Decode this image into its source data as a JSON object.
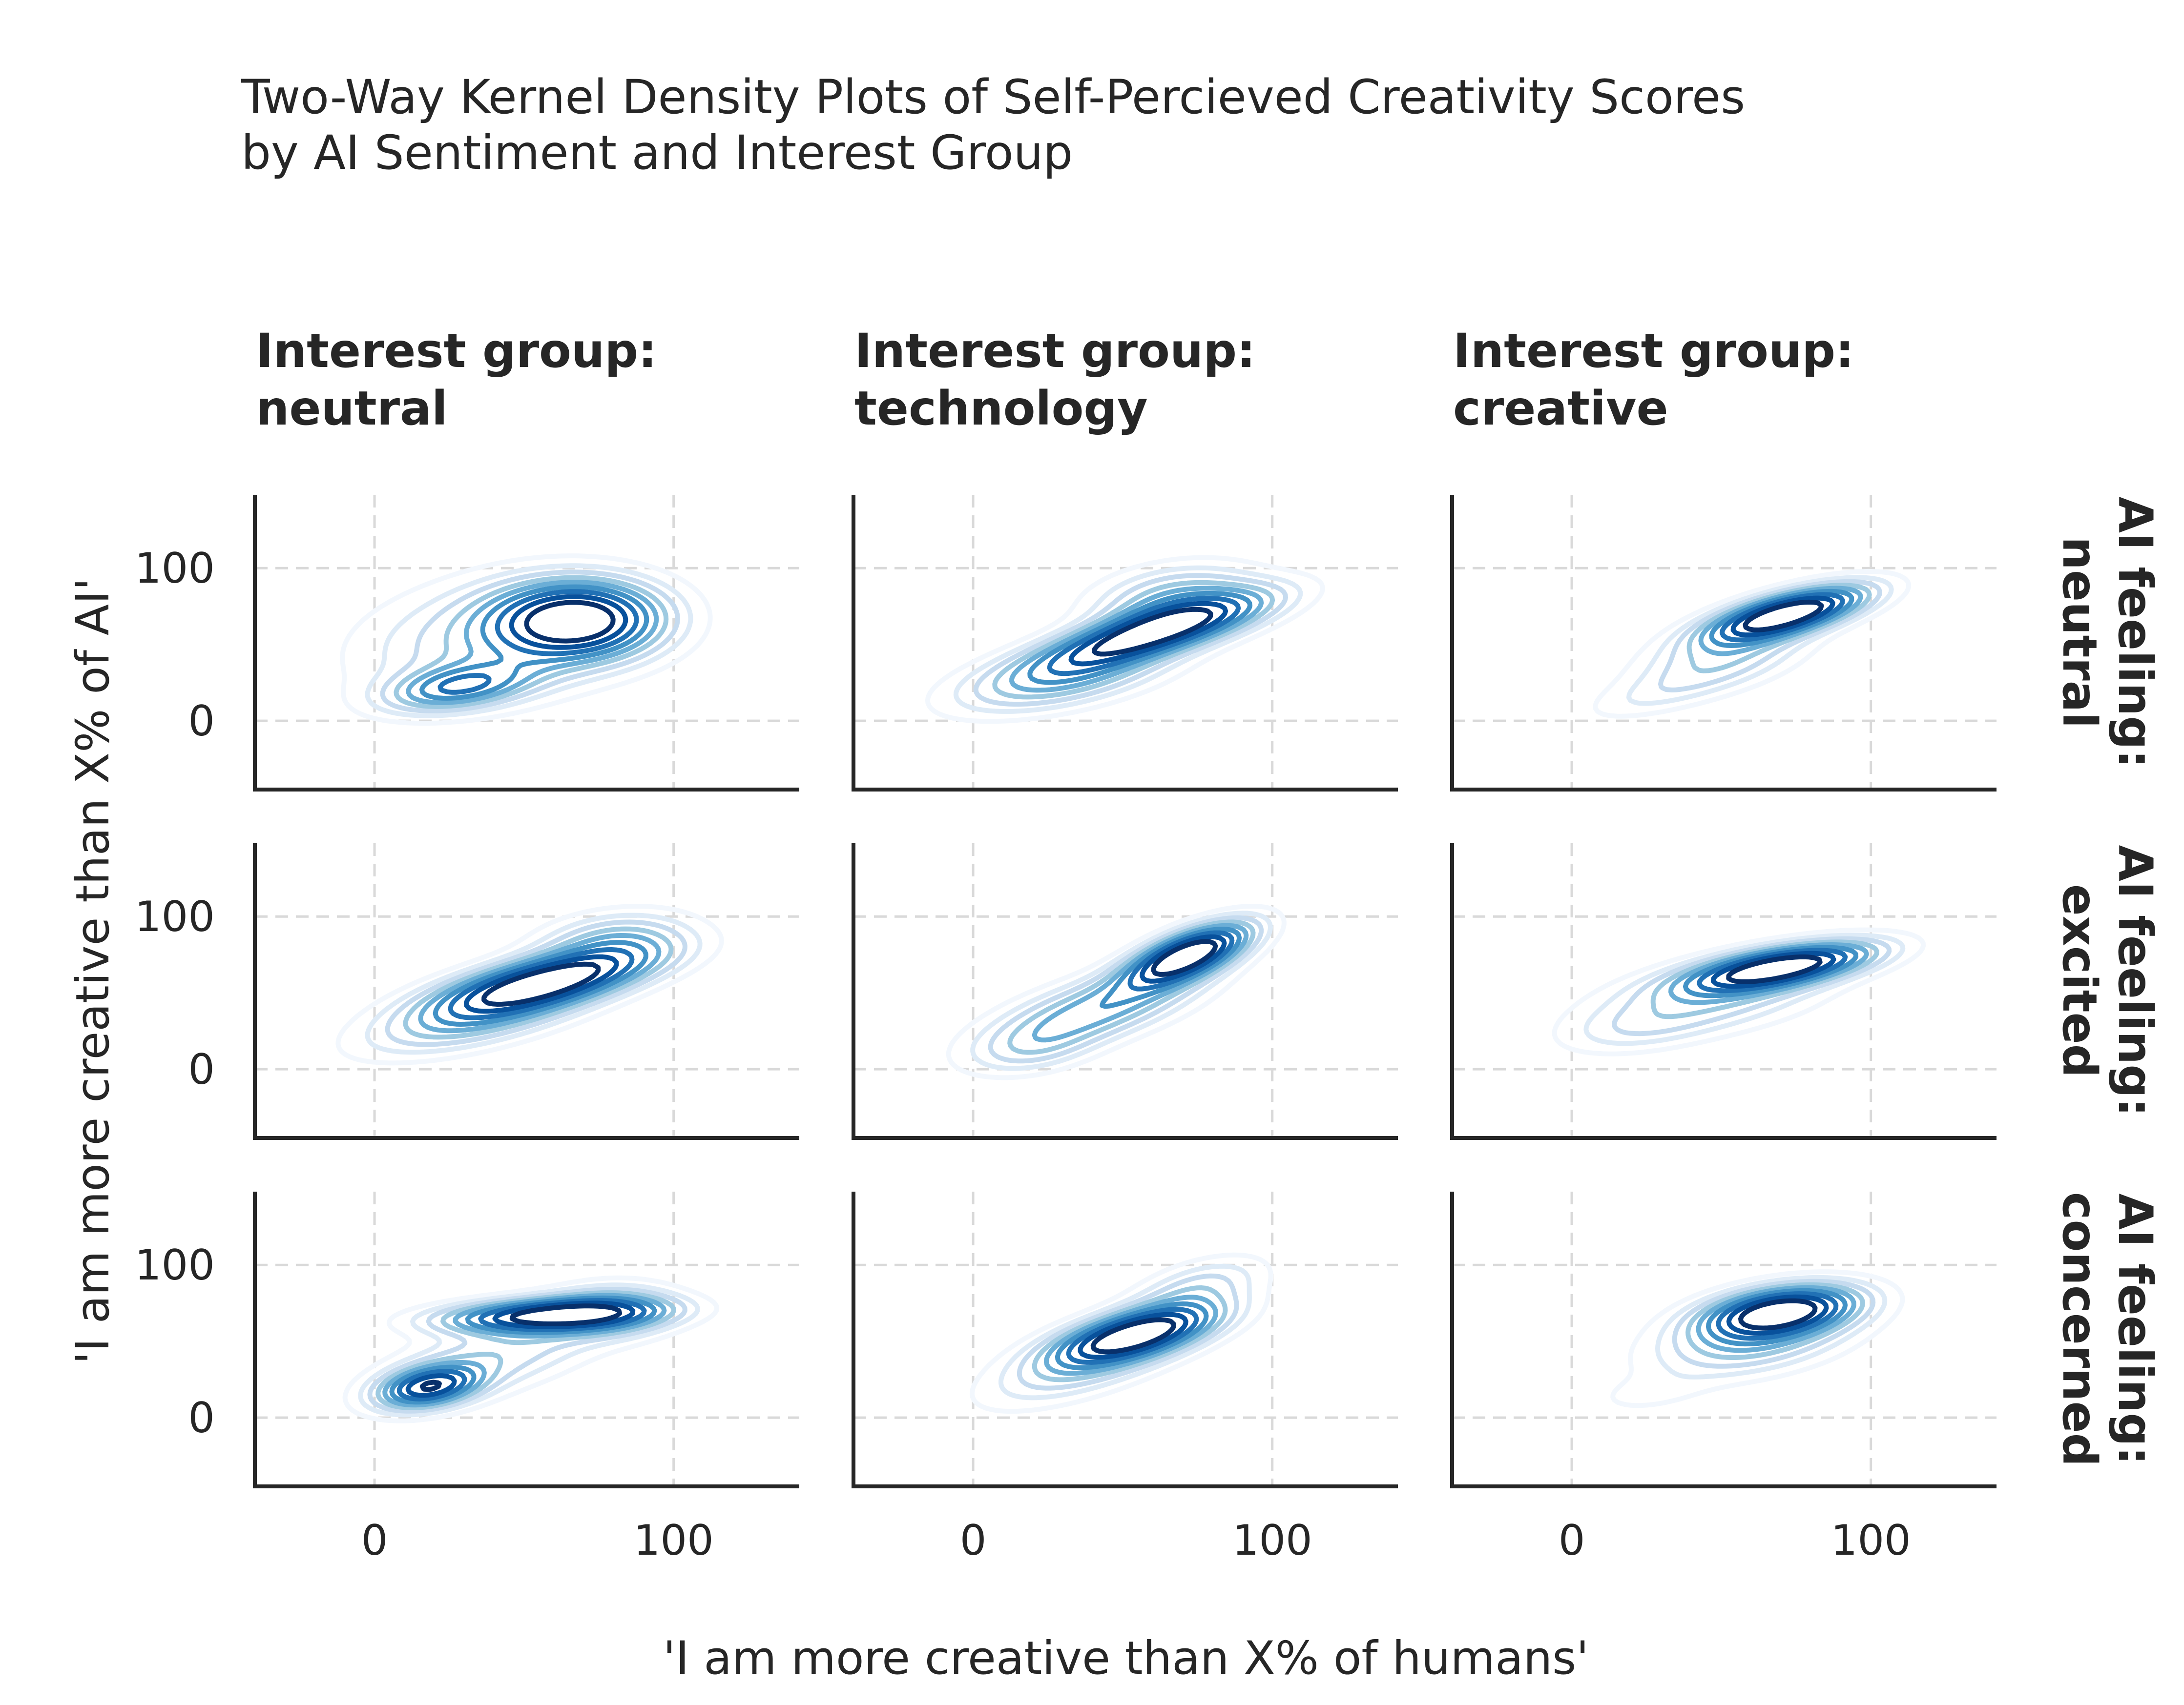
{
  "chart_data": {
    "type": "kde-contour-grid",
    "title": "Two-Way Kernel Density Plots of Self-Percieved Creativity Scores\nby AI Sentiment and Interest Group",
    "xlabel": "'I am more creative than X% of humans'",
    "ylabel": "'I am more creative than X% of AI'",
    "xlim": [
      -40,
      142
    ],
    "ylim": [
      -45,
      148
    ],
    "xticks": [
      "0",
      "100"
    ],
    "yticks": [
      "0",
      "100"
    ],
    "grid": true,
    "colormap": "Blues",
    "colors": [
      "#f2f7fd",
      "#deebf7",
      "#c6dbef",
      "#9ecae1",
      "#6baed6",
      "#4292c6",
      "#2171b5",
      "#08519c",
      "#08306b"
    ],
    "column_titles": [
      "Interest group:\nneutral",
      "Interest group:\ntechnology",
      "Interest group:\ncreative"
    ],
    "row_titles": [
      "AI feeling:\nneutral",
      "AI feeling:\nexcited",
      "AI feeling:\nconcerned"
    ],
    "panels": [
      {
        "row": 0,
        "col": 0,
        "components": [
          {
            "cx": 68,
            "cy": 66,
            "sx": 19,
            "sy": 17,
            "angle": 10,
            "w": 1.0
          },
          {
            "cx": 28,
            "cy": 22,
            "sx": 17,
            "sy": 9,
            "angle": 20,
            "w": 0.55
          },
          {
            "cx": 40,
            "cy": 52,
            "sx": 32,
            "sy": 25,
            "angle": 32,
            "w": 0.35
          }
        ]
      },
      {
        "row": 0,
        "col": 1,
        "components": [
          {
            "cx": 60,
            "cy": 58,
            "sx": 28,
            "sy": 9,
            "angle": 30,
            "w": 1.0
          },
          {
            "cx": 30,
            "cy": 28,
            "sx": 26,
            "sy": 12,
            "angle": 25,
            "w": 0.45
          },
          {
            "cx": 68,
            "cy": 80,
            "sx": 20,
            "sy": 14,
            "angle": 25,
            "w": 0.4
          }
        ]
      },
      {
        "row": 0,
        "col": 2,
        "components": [
          {
            "cx": 72,
            "cy": 70,
            "sx": 20,
            "sy": 8,
            "angle": 30,
            "w": 1.0
          },
          {
            "cx": 50,
            "cy": 40,
            "sx": 22,
            "sy": 12,
            "angle": 35,
            "w": 0.3
          },
          {
            "cx": 25,
            "cy": 15,
            "sx": 18,
            "sy": 8,
            "angle": 30,
            "w": 0.1
          }
        ]
      },
      {
        "row": 1,
        "col": 0,
        "components": [
          {
            "cx": 58,
            "cy": 58,
            "sx": 26,
            "sy": 10,
            "angle": 25,
            "w": 1.0
          },
          {
            "cx": 35,
            "cy": 35,
            "sx": 28,
            "sy": 12,
            "angle": 28,
            "w": 0.45
          },
          {
            "cx": 80,
            "cy": 85,
            "sx": 18,
            "sy": 12,
            "angle": 20,
            "w": 0.35
          }
        ]
      },
      {
        "row": 1,
        "col": 1,
        "components": [
          {
            "cx": 72,
            "cy": 75,
            "sx": 18,
            "sy": 8,
            "angle": 45,
            "w": 1.0
          },
          {
            "cx": 40,
            "cy": 38,
            "sx": 28,
            "sy": 12,
            "angle": 35,
            "w": 0.45
          },
          {
            "cx": 20,
            "cy": 12,
            "sx": 15,
            "sy": 10,
            "angle": 30,
            "w": 0.15
          }
        ]
      },
      {
        "row": 1,
        "col": 2,
        "components": [
          {
            "cx": 70,
            "cy": 67,
            "sx": 22,
            "sy": 8,
            "angle": 20,
            "w": 1.0
          },
          {
            "cx": 45,
            "cy": 45,
            "sx": 28,
            "sy": 14,
            "angle": 20,
            "w": 0.3
          },
          {
            "cx": 20,
            "cy": 25,
            "sx": 18,
            "sy": 10,
            "angle": 20,
            "w": 0.12
          }
        ]
      },
      {
        "row": 2,
        "col": 0,
        "components": [
          {
            "cx": 58,
            "cy": 67,
            "sx": 24,
            "sy": 7,
            "angle": 5,
            "w": 1.0
          },
          {
            "cx": 18,
            "cy": 20,
            "sx": 12,
            "sy": 8,
            "angle": 30,
            "w": 0.85
          },
          {
            "cx": 40,
            "cy": 40,
            "sx": 30,
            "sy": 14,
            "angle": 35,
            "w": 0.35
          },
          {
            "cx": 80,
            "cy": 70,
            "sx": 15,
            "sy": 12,
            "angle": 10,
            "w": 0.35
          }
        ]
      },
      {
        "row": 2,
        "col": 1,
        "components": [
          {
            "cx": 55,
            "cy": 55,
            "sx": 20,
            "sy": 9,
            "angle": 30,
            "w": 1.0
          },
          {
            "cx": 40,
            "cy": 38,
            "sx": 28,
            "sy": 12,
            "angle": 38,
            "w": 0.4
          },
          {
            "cx": 75,
            "cy": 85,
            "sx": 18,
            "sy": 10,
            "angle": 40,
            "w": 0.3
          }
        ]
      },
      {
        "row": 2,
        "col": 2,
        "components": [
          {
            "cx": 70,
            "cy": 70,
            "sx": 18,
            "sy": 10,
            "angle": 20,
            "w": 1.0
          },
          {
            "cx": 60,
            "cy": 50,
            "sx": 24,
            "sy": 14,
            "angle": 25,
            "w": 0.4
          },
          {
            "cx": 25,
            "cy": 15,
            "sx": 14,
            "sy": 8,
            "angle": 20,
            "w": 0.1
          }
        ]
      }
    ]
  }
}
